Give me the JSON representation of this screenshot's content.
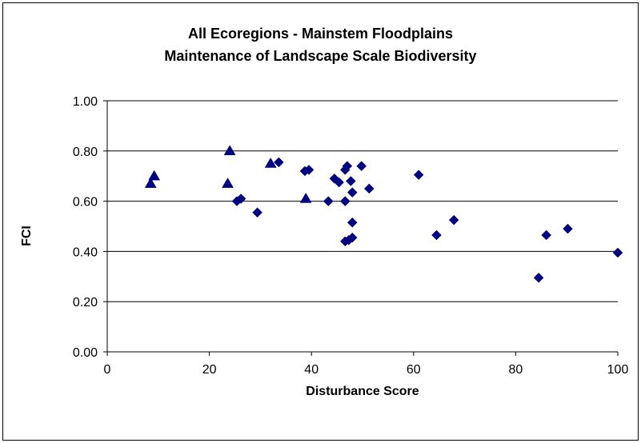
{
  "chart_data": {
    "type": "scatter",
    "title_lines": [
      "All Ecoregions - Mainstem Floodplains",
      "Maintenance of Landscape Scale Biodiversity"
    ],
    "xlabel": "Disturbance Score",
    "ylabel": "FCI",
    "xlim": [
      0,
      100
    ],
    "ylim": [
      0,
      1
    ],
    "x_ticks": [
      "0",
      "20",
      "40",
      "60",
      "80",
      "100"
    ],
    "y_ticks": [
      "0.00",
      "0.20",
      "0.40",
      "0.60",
      "0.80",
      "1.00"
    ],
    "grid": "horizontal",
    "legend": "none",
    "series": [
      {
        "marker": "triangle",
        "color": "#000080",
        "points": [
          {
            "x": 8.5,
            "y": 0.67
          },
          {
            "x": 9.2,
            "y": 0.7
          },
          {
            "x": 23.6,
            "y": 0.67
          },
          {
            "x": 24.0,
            "y": 0.8
          },
          {
            "x": 32.0,
            "y": 0.75
          },
          {
            "x": 38.9,
            "y": 0.61
          }
        ]
      },
      {
        "marker": "diamond",
        "color": "#000080",
        "points": [
          {
            "x": 25.4,
            "y": 0.6
          },
          {
            "x": 26.2,
            "y": 0.61
          },
          {
            "x": 29.4,
            "y": 0.555
          },
          {
            "x": 33.6,
            "y": 0.755
          },
          {
            "x": 38.7,
            "y": 0.72
          },
          {
            "x": 39.5,
            "y": 0.725
          },
          {
            "x": 43.3,
            "y": 0.6
          },
          {
            "x": 44.5,
            "y": 0.69
          },
          {
            "x": 45.4,
            "y": 0.675
          },
          {
            "x": 46.6,
            "y": 0.6
          },
          {
            "x": 46.6,
            "y": 0.725
          },
          {
            "x": 47.0,
            "y": 0.74
          },
          {
            "x": 46.6,
            "y": 0.44
          },
          {
            "x": 47.3,
            "y": 0.445
          },
          {
            "x": 47.7,
            "y": 0.68
          },
          {
            "x": 48.0,
            "y": 0.635
          },
          {
            "x": 48.0,
            "y": 0.515
          },
          {
            "x": 48.0,
            "y": 0.455
          },
          {
            "x": 49.8,
            "y": 0.74
          },
          {
            "x": 51.3,
            "y": 0.65
          },
          {
            "x": 61.0,
            "y": 0.705
          },
          {
            "x": 64.5,
            "y": 0.465
          },
          {
            "x": 67.9,
            "y": 0.525
          },
          {
            "x": 84.5,
            "y": 0.295
          },
          {
            "x": 86.0,
            "y": 0.465
          },
          {
            "x": 90.2,
            "y": 0.49
          },
          {
            "x": 100,
            "y": 0.395
          }
        ]
      }
    ]
  }
}
